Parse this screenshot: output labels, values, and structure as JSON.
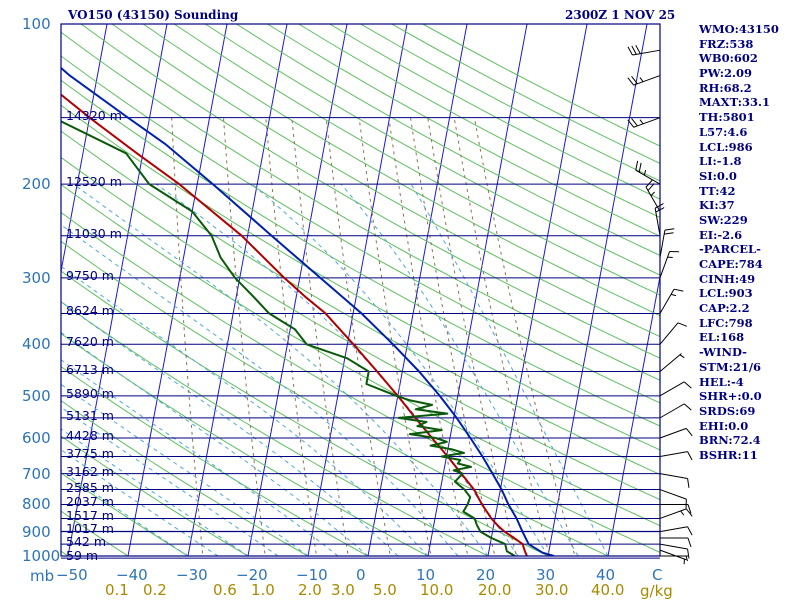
{
  "header": {
    "title": "VO150 (43150) Sounding",
    "datetime": "2300Z  1 NOV 25"
  },
  "indices": [
    "WMO:43150",
    "FRZ:538",
    "WB0:602",
    "PW:2.09",
    "RH:68.2",
    "MAXT:33.1",
    "TH:5801",
    "L57:4.6",
    "LCL:986",
    "LI:-1.8",
    "SI:0.0",
    "TT:42",
    "KI:37",
    "SW:229",
    "EI:-2.6",
    "-PARCEL-",
    "CAPE:784",
    "CINH:49",
    "LCL:903",
    "CAP:2.2",
    "LFC:798",
    "EL:168",
    "-WIND-",
    "STM:21/6",
    "HEL:-4",
    "SHR+:0.0",
    "SRDS:69",
    "EHI:0.0",
    "BRN:72.4",
    "BSHR:11"
  ],
  "colors": {
    "isobar": "#000080",
    "isotherm": "#1a1ad0",
    "dry_adiabat": "#5fbf5f",
    "moist_adiabat": "#4fa8d8",
    "mixing_ratio": "#8b7355",
    "temperature": "#b00000",
    "dewpoint": "#0a5a0a",
    "parcel": "#0022aa",
    "pressure_label": "#2e74b5",
    "mixing_label": "#a88a00",
    "text": "#000080"
  },
  "chart_data": {
    "type": "line",
    "title": "VO150 (43150) Sounding",
    "xlabel": "",
    "ylabel": "mb",
    "x_axis_unit": "C",
    "y_scale": "log",
    "y_range_mb": [
      1000,
      100
    ],
    "t_range_c": [
      -50,
      50
    ],
    "pressure_ticks": [
      "1000",
      "900",
      "800",
      "700",
      "600",
      "500",
      "400",
      "300",
      "200",
      "100"
    ],
    "temperature_ticks": [
      "−50",
      "−40",
      "−30",
      "−20",
      "−10",
      "0",
      "10",
      "20",
      "30",
      "40"
    ],
    "mixing_ratio_ticks": [
      "0.1",
      "0.2",
      "0.6",
      "1.0",
      "2.0",
      "3.0",
      "5.0",
      "10.0",
      "20.0",
      "30.0",
      "40.0"
    ],
    "mixing_ratio_unit": "g/kg",
    "pressure_unit": "mb",
    "temperature_unit": "C",
    "heights": [
      {
        "p": 1009,
        "label": "59 m"
      },
      {
        "p": 950,
        "label": "542 m"
      },
      {
        "p": 899,
        "label": "1017 m"
      },
      {
        "p": 850,
        "label": "1517 m"
      },
      {
        "p": 800,
        "label": "2037 m"
      },
      {
        "p": 750,
        "label": "2585 m"
      },
      {
        "p": 700,
        "label": "3162 m"
      },
      {
        "p": 650,
        "label": "3775 m"
      },
      {
        "p": 600,
        "label": "4428 m"
      },
      {
        "p": 550,
        "label": "5131 m"
      },
      {
        "p": 500,
        "label": "5890 m"
      },
      {
        "p": 450,
        "label": "6713 m"
      },
      {
        "p": 400,
        "label": "7620 m"
      },
      {
        "p": 350,
        "label": "8624 m"
      },
      {
        "p": 300,
        "label": "9750 m"
      },
      {
        "p": 250,
        "label": "11030 m"
      },
      {
        "p": 200,
        "label": "12520 m"
      },
      {
        "p": 150,
        "label": "14320 m"
      }
    ],
    "series": [
      {
        "id": "temperature",
        "points": [
          [
            1000,
            26.5
          ],
          [
            980,
            26.0
          ],
          [
            950,
            25.4
          ],
          [
            925,
            23.8
          ],
          [
            900,
            22.0
          ],
          [
            875,
            20.6
          ],
          [
            850,
            19.4
          ],
          [
            800,
            17.4
          ],
          [
            775,
            16.5
          ],
          [
            750,
            15.6
          ],
          [
            700,
            13.0
          ],
          [
            650,
            10.2
          ],
          [
            600,
            7.0
          ],
          [
            550,
            3.6
          ],
          [
            500,
            0.0
          ],
          [
            450,
            -4.2
          ],
          [
            400,
            -9.0
          ],
          [
            350,
            -14.6
          ],
          [
            325,
            -18.6
          ],
          [
            300,
            -22.6
          ],
          [
            250,
            -31.0
          ],
          [
            200,
            -43.0
          ],
          [
            175,
            -51.0
          ],
          [
            150,
            -60.0
          ],
          [
            125,
            -70.0
          ],
          [
            112,
            -76.0
          ]
        ]
      },
      {
        "id": "dewpoint",
        "points": [
          [
            1000,
            24.5
          ],
          [
            980,
            23.0
          ],
          [
            950,
            22.5
          ],
          [
            925,
            20.0
          ],
          [
            900,
            18.0
          ],
          [
            875,
            17.2
          ],
          [
            850,
            16.6
          ],
          [
            825,
            14.5
          ],
          [
            800,
            15.0
          ],
          [
            775,
            15.2
          ],
          [
            750,
            14.0
          ],
          [
            725,
            12.2
          ],
          [
            700,
            13.2
          ],
          [
            690,
            11.6
          ],
          [
            680,
            14.4
          ],
          [
            670,
            12.1
          ],
          [
            660,
            12.4
          ],
          [
            650,
            9.2
          ],
          [
            640,
            12.8
          ],
          [
            630,
            10.6
          ],
          [
            620,
            7.0
          ],
          [
            610,
            9.6
          ],
          [
            600,
            7.6
          ],
          [
            590,
            3.2
          ],
          [
            580,
            8.4
          ],
          [
            570,
            4.2
          ],
          [
            560,
            5.6
          ],
          [
            550,
            0.8
          ],
          [
            540,
            8.8
          ],
          [
            530,
            3.4
          ],
          [
            520,
            6.0
          ],
          [
            510,
            2.2
          ],
          [
            500,
            -0.2
          ],
          [
            475,
            -5.6
          ],
          [
            450,
            -5.6
          ],
          [
            425,
            -9.6
          ],
          [
            400,
            -16.8
          ],
          [
            375,
            -19.2
          ],
          [
            350,
            -24.0
          ],
          [
            325,
            -27.2
          ],
          [
            300,
            -30.8
          ],
          [
            275,
            -33.8
          ],
          [
            250,
            -36.0
          ],
          [
            225,
            -40.0
          ],
          [
            200,
            -48.0
          ],
          [
            175,
            -52.8
          ],
          [
            150,
            -66.0
          ],
          [
            125,
            -70.0
          ],
          [
            112,
            -76.0
          ]
        ]
      },
      {
        "id": "parcel",
        "points": [
          [
            1000,
            31.0
          ],
          [
            986,
            29.0
          ],
          [
            950,
            26.4
          ],
          [
            900,
            25.0
          ],
          [
            850,
            23.6
          ],
          [
            800,
            21.8
          ],
          [
            750,
            20.2
          ],
          [
            700,
            18.2
          ],
          [
            650,
            16.0
          ],
          [
            600,
            13.4
          ],
          [
            550,
            10.5
          ],
          [
            500,
            7.0
          ],
          [
            450,
            2.8
          ],
          [
            400,
            -2.4
          ],
          [
            350,
            -8.6
          ],
          [
            300,
            -16.6
          ],
          [
            250,
            -26.0
          ],
          [
            200,
            -37.4
          ],
          [
            168,
            -46.6
          ],
          [
            150,
            -53.6
          ],
          [
            125,
            -64.6
          ],
          [
            105,
            -73.6
          ]
        ]
      }
    ],
    "wind_barbs": [
      {
        "p": 1000,
        "dir": 90,
        "kt": 5
      },
      {
        "p": 975,
        "dir": 110,
        "kt": 5
      },
      {
        "p": 950,
        "dir": 100,
        "kt": 10
      },
      {
        "p": 925,
        "dir": 90,
        "kt": 10
      },
      {
        "p": 900,
        "dir": 80,
        "kt": 10
      },
      {
        "p": 850,
        "dir": 70,
        "kt": 15
      },
      {
        "p": 800,
        "dir": 90,
        "kt": 10
      },
      {
        "p": 750,
        "dir": 110,
        "kt": 10
      },
      {
        "p": 700,
        "dir": 100,
        "kt": 10
      },
      {
        "p": 650,
        "dir": 80,
        "kt": 10
      },
      {
        "p": 600,
        "dir": 70,
        "kt": 10
      },
      {
        "p": 550,
        "dir": 60,
        "kt": 10
      },
      {
        "p": 500,
        "dir": 60,
        "kt": 10
      },
      {
        "p": 450,
        "dir": 50,
        "kt": 5
      },
      {
        "p": 400,
        "dir": 40,
        "kt": 10
      },
      {
        "p": 350,
        "dir": 30,
        "kt": 15
      },
      {
        "p": 300,
        "dir": 20,
        "kt": 15
      },
      {
        "p": 275,
        "dir": 10,
        "kt": 20
      },
      {
        "p": 250,
        "dir": 350,
        "kt": 20
      },
      {
        "p": 225,
        "dir": 330,
        "kt": 25
      },
      {
        "p": 200,
        "dir": 300,
        "kt": 25
      },
      {
        "p": 150,
        "dir": 250,
        "kt": 25
      },
      {
        "p": 125,
        "dir": 250,
        "kt": 25
      },
      {
        "p": 112,
        "dir": 260,
        "kt": 30
      }
    ]
  }
}
